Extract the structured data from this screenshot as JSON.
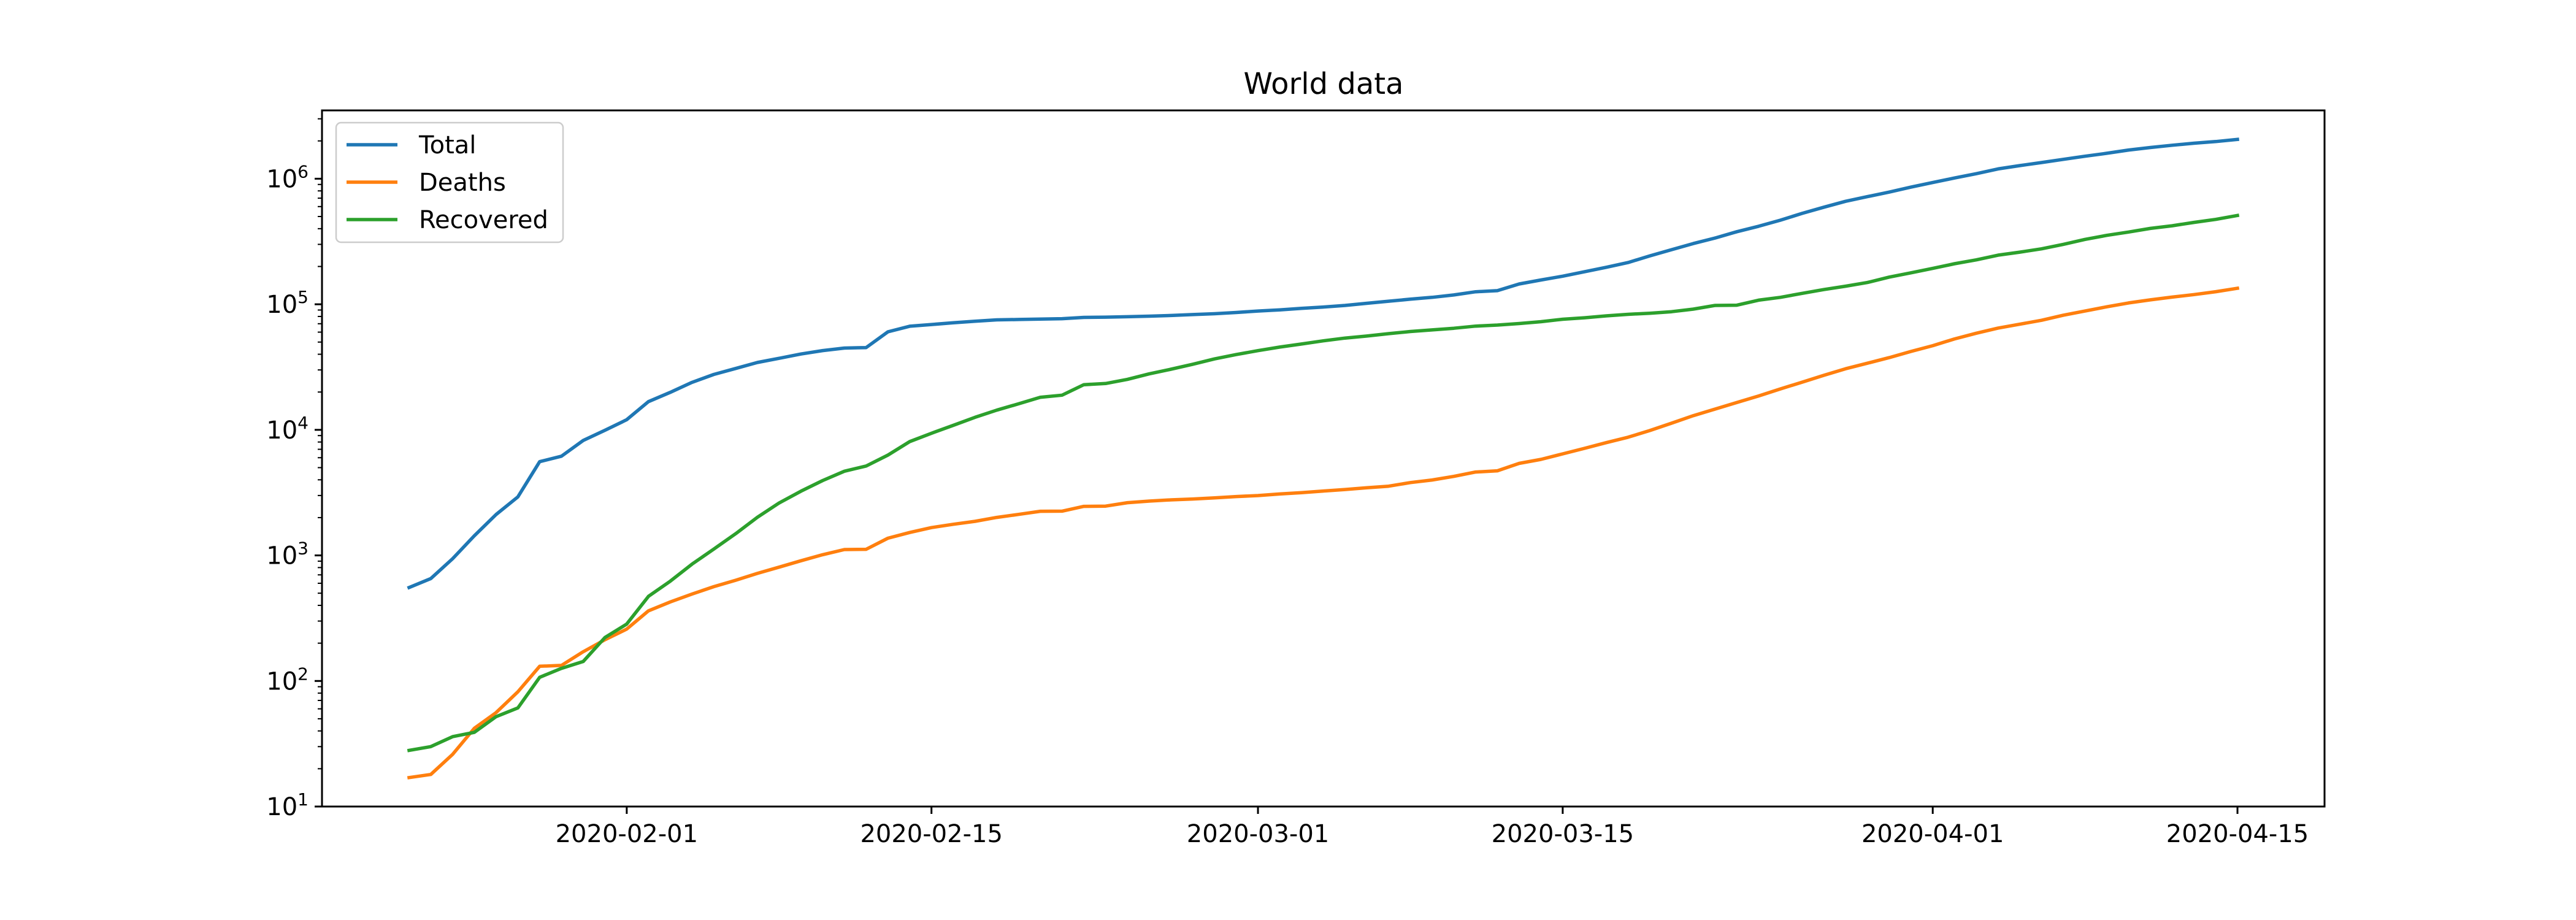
{
  "chart_data": {
    "type": "line",
    "title": "World data",
    "xlabel": "",
    "ylabel": "",
    "yscale": "log",
    "ylim": [
      10,
      3500000
    ],
    "xlim": [
      "2020-01-18",
      "2020-04-19"
    ],
    "grid": false,
    "legend_position": "upper-left",
    "x_ticks": [
      "2020-02-01",
      "2020-02-15",
      "2020-03-01",
      "2020-03-15",
      "2020-04-01",
      "2020-04-15"
    ],
    "y_ticks": [
      {
        "base": "10",
        "exp": "1",
        "value": 10
      },
      {
        "base": "10",
        "exp": "2",
        "value": 100
      },
      {
        "base": "10",
        "exp": "3",
        "value": 1000
      },
      {
        "base": "10",
        "exp": "4",
        "value": 10000
      },
      {
        "base": "10",
        "exp": "5",
        "value": 100000
      },
      {
        "base": "10",
        "exp": "6",
        "value": 1000000
      }
    ],
    "series": [
      {
        "name": "Total",
        "color": "#1f77b4",
        "points": [
          [
            "2020-01-22",
            555
          ],
          [
            "2020-01-23",
            654
          ],
          [
            "2020-01-24",
            941
          ],
          [
            "2020-01-25",
            1434
          ],
          [
            "2020-01-26",
            2118
          ],
          [
            "2020-01-27",
            2927
          ],
          [
            "2020-01-28",
            5578
          ],
          [
            "2020-01-29",
            6166
          ],
          [
            "2020-01-30",
            8234
          ],
          [
            "2020-01-31",
            9927
          ],
          [
            "2020-02-01",
            12038
          ],
          [
            "2020-02-02",
            16787
          ],
          [
            "2020-02-03",
            19881
          ],
          [
            "2020-02-04",
            23892
          ],
          [
            "2020-02-05",
            27635
          ],
          [
            "2020-02-06",
            30794
          ],
          [
            "2020-02-07",
            34391
          ],
          [
            "2020-02-08",
            37120
          ],
          [
            "2020-02-09",
            40150
          ],
          [
            "2020-02-10",
            42762
          ],
          [
            "2020-02-11",
            44802
          ],
          [
            "2020-02-12",
            45221
          ],
          [
            "2020-02-13",
            60368
          ],
          [
            "2020-02-14",
            66885
          ],
          [
            "2020-02-15",
            69030
          ],
          [
            "2020-02-16",
            71224
          ],
          [
            "2020-02-17",
            73258
          ],
          [
            "2020-02-18",
            75136
          ],
          [
            "2020-02-19",
            75639
          ],
          [
            "2020-02-20",
            76197
          ],
          [
            "2020-02-21",
            76819
          ],
          [
            "2020-02-22",
            78572
          ],
          [
            "2020-02-23",
            78958
          ],
          [
            "2020-02-24",
            79561
          ],
          [
            "2020-02-25",
            80406
          ],
          [
            "2020-02-26",
            81388
          ],
          [
            "2020-02-27",
            82746
          ],
          [
            "2020-02-28",
            84112
          ],
          [
            "2020-02-29",
            86011
          ],
          [
            "2020-03-01",
            88369
          ],
          [
            "2020-03-02",
            90306
          ],
          [
            "2020-03-03",
            92840
          ],
          [
            "2020-03-04",
            95120
          ],
          [
            "2020-03-05",
            97882
          ],
          [
            "2020-03-06",
            101784
          ],
          [
            "2020-03-07",
            105821
          ],
          [
            "2020-03-08",
            109795
          ],
          [
            "2020-03-09",
            113561
          ],
          [
            "2020-03-10",
            118592
          ],
          [
            "2020-03-11",
            125865
          ],
          [
            "2020-03-12",
            128343
          ],
          [
            "2020-03-13",
            145193
          ],
          [
            "2020-03-14",
            156094
          ],
          [
            "2020-03-15",
            167446
          ],
          [
            "2020-03-16",
            181527
          ],
          [
            "2020-03-17",
            197142
          ],
          [
            "2020-03-18",
            214910
          ],
          [
            "2020-03-19",
            242708
          ],
          [
            "2020-03-20",
            272166
          ],
          [
            "2020-03-21",
            304524
          ],
          [
            "2020-03-22",
            336953
          ],
          [
            "2020-03-23",
            378235
          ],
          [
            "2020-03-24",
            418045
          ],
          [
            "2020-03-25",
            467653
          ],
          [
            "2020-03-26",
            529591
          ],
          [
            "2020-03-27",
            593291
          ],
          [
            "2020-03-28",
            660693
          ],
          [
            "2020-03-29",
            720140
          ],
          [
            "2020-03-30",
            782389
          ],
          [
            "2020-03-31",
            857487
          ],
          [
            "2020-04-01",
            932605
          ],
          [
            "2020-04-02",
            1013466
          ],
          [
            "2020-04-03",
            1095917
          ],
          [
            "2020-04-04",
            1197405
          ],
          [
            "2020-04-05",
            1272115
          ],
          [
            "2020-04-06",
            1345101
          ],
          [
            "2020-04-07",
            1426096
          ],
          [
            "2020-04-08",
            1511104
          ],
          [
            "2020-04-09",
            1595350
          ],
          [
            "2020-04-10",
            1691719
          ],
          [
            "2020-04-11",
            1771514
          ],
          [
            "2020-04-12",
            1846680
          ],
          [
            "2020-04-13",
            1917320
          ],
          [
            "2020-04-14",
            1976191
          ],
          [
            "2020-04-15",
            2056054
          ]
        ]
      },
      {
        "name": "Deaths",
        "color": "#ff7f0e",
        "points": [
          [
            "2020-01-22",
            17
          ],
          [
            "2020-01-23",
            18
          ],
          [
            "2020-01-24",
            26
          ],
          [
            "2020-01-25",
            42
          ],
          [
            "2020-01-26",
            56
          ],
          [
            "2020-01-27",
            82
          ],
          [
            "2020-01-28",
            131
          ],
          [
            "2020-01-29",
            133
          ],
          [
            "2020-01-30",
            171
          ],
          [
            "2020-01-31",
            213
          ],
          [
            "2020-02-01",
            259
          ],
          [
            "2020-02-02",
            362
          ],
          [
            "2020-02-03",
            426
          ],
          [
            "2020-02-04",
            492
          ],
          [
            "2020-02-05",
            564
          ],
          [
            "2020-02-06",
            634
          ],
          [
            "2020-02-07",
            719
          ],
          [
            "2020-02-08",
            806
          ],
          [
            "2020-02-09",
            906
          ],
          [
            "2020-02-10",
            1013
          ],
          [
            "2020-02-11",
            1113
          ],
          [
            "2020-02-12",
            1118
          ],
          [
            "2020-02-13",
            1371
          ],
          [
            "2020-02-14",
            1523
          ],
          [
            "2020-02-15",
            1666
          ],
          [
            "2020-02-16",
            1770
          ],
          [
            "2020-02-17",
            1868
          ],
          [
            "2020-02-18",
            2007
          ],
          [
            "2020-02-19",
            2122
          ],
          [
            "2020-02-20",
            2247
          ],
          [
            "2020-02-21",
            2251
          ],
          [
            "2020-02-22",
            2458
          ],
          [
            "2020-02-23",
            2469
          ],
          [
            "2020-02-24",
            2629
          ],
          [
            "2020-02-25",
            2708
          ],
          [
            "2020-02-26",
            2770
          ],
          [
            "2020-02-27",
            2814
          ],
          [
            "2020-02-28",
            2872
          ],
          [
            "2020-02-29",
            2941
          ],
          [
            "2020-03-01",
            2996
          ],
          [
            "2020-03-02",
            3085
          ],
          [
            "2020-03-03",
            3160
          ],
          [
            "2020-03-04",
            3254
          ],
          [
            "2020-03-05",
            3348
          ],
          [
            "2020-03-06",
            3460
          ],
          [
            "2020-03-07",
            3558
          ],
          [
            "2020-03-08",
            3802
          ],
          [
            "2020-03-09",
            3988
          ],
          [
            "2020-03-10",
            4262
          ],
          [
            "2020-03-11",
            4615
          ],
          [
            "2020-03-12",
            4720
          ],
          [
            "2020-03-13",
            5404
          ],
          [
            "2020-03-14",
            5819
          ],
          [
            "2020-03-15",
            6440
          ],
          [
            "2020-03-16",
            7126
          ],
          [
            "2020-03-17",
            7905
          ],
          [
            "2020-03-18",
            8733
          ],
          [
            "2020-03-19",
            9867
          ],
          [
            "2020-03-20",
            11299
          ],
          [
            "2020-03-21",
            12973
          ],
          [
            "2020-03-22",
            14623
          ],
          [
            "2020-03-23",
            16497
          ],
          [
            "2020-03-24",
            18615
          ],
          [
            "2020-03-25",
            21181
          ],
          [
            "2020-03-26",
            23970
          ],
          [
            "2020-03-27",
            27198
          ],
          [
            "2020-03-28",
            30652
          ],
          [
            "2020-03-29",
            33925
          ],
          [
            "2020-03-30",
            37582
          ],
          [
            "2020-03-31",
            42107
          ],
          [
            "2020-04-01",
            46809
          ],
          [
            "2020-04-02",
            52983
          ],
          [
            "2020-04-03",
            58787
          ],
          [
            "2020-04-04",
            64606
          ],
          [
            "2020-04-05",
            69374
          ],
          [
            "2020-04-06",
            74565
          ],
          [
            "2020-04-07",
            81865
          ],
          [
            "2020-04-08",
            88338
          ],
          [
            "2020-04-09",
            95455
          ],
          [
            "2020-04-10",
            102525
          ],
          [
            "2020-04-11",
            108503
          ],
          [
            "2020-04-12",
            114090
          ],
          [
            "2020-04-13",
            119482
          ],
          [
            "2020-04-14",
            125984
          ],
          [
            "2020-04-15",
            134177
          ]
        ]
      },
      {
        "name": "Recovered",
        "color": "#2ca02c",
        "points": [
          [
            "2020-01-22",
            28
          ],
          [
            "2020-01-23",
            30
          ],
          [
            "2020-01-24",
            36
          ],
          [
            "2020-01-25",
            39
          ],
          [
            "2020-01-26",
            52
          ],
          [
            "2020-01-27",
            61
          ],
          [
            "2020-01-28",
            107
          ],
          [
            "2020-01-29",
            126
          ],
          [
            "2020-01-30",
            143
          ],
          [
            "2020-01-31",
            222
          ],
          [
            "2020-02-01",
            284
          ],
          [
            "2020-02-02",
            472
          ],
          [
            "2020-02-03",
            623
          ],
          [
            "2020-02-04",
            852
          ],
          [
            "2020-02-05",
            1124
          ],
          [
            "2020-02-06",
            1487
          ],
          [
            "2020-02-07",
            2011
          ],
          [
            "2020-02-08",
            2616
          ],
          [
            "2020-02-09",
            3244
          ],
          [
            "2020-02-10",
            3946
          ],
          [
            "2020-02-11",
            4683
          ],
          [
            "2020-02-12",
            5150
          ],
          [
            "2020-02-13",
            6295
          ],
          [
            "2020-02-14",
            8058
          ],
          [
            "2020-02-15",
            9395
          ],
          [
            "2020-02-16",
            10865
          ],
          [
            "2020-02-17",
            12583
          ],
          [
            "2020-02-18",
            14352
          ],
          [
            "2020-02-19",
            16121
          ],
          [
            "2020-02-20",
            18177
          ],
          [
            "2020-02-21",
            18890
          ],
          [
            "2020-02-22",
            22886
          ],
          [
            "2020-02-23",
            23394
          ],
          [
            "2020-02-24",
            25227
          ],
          [
            "2020-02-25",
            27905
          ],
          [
            "2020-02-26",
            30384
          ],
          [
            "2020-02-27",
            33277
          ],
          [
            "2020-02-28",
            36711
          ],
          [
            "2020-02-29",
            39782
          ],
          [
            "2020-03-01",
            42716
          ],
          [
            "2020-03-02",
            45602
          ],
          [
            "2020-03-03",
            48228
          ],
          [
            "2020-03-04",
            51170
          ],
          [
            "2020-03-05",
            53796
          ],
          [
            "2020-03-06",
            55865
          ],
          [
            "2020-03-07",
            58358
          ],
          [
            "2020-03-08",
            60694
          ],
          [
            "2020-03-09",
            62494
          ],
          [
            "2020-03-10",
            64404
          ],
          [
            "2020-03-11",
            67003
          ],
          [
            "2020-03-12",
            68324
          ],
          [
            "2020-03-13",
            70251
          ],
          [
            "2020-03-14",
            72624
          ],
          [
            "2020-03-15",
            76034
          ],
          [
            "2020-03-16",
            78088
          ],
          [
            "2020-03-17",
            80840
          ],
          [
            "2020-03-18",
            83207
          ],
          [
            "2020-03-19",
            84854
          ],
          [
            "2020-03-20",
            87256
          ],
          [
            "2020-03-21",
            91499
          ],
          [
            "2020-03-22",
            97885
          ],
          [
            "2020-03-23",
            98341
          ],
          [
            "2020-03-24",
            107890
          ],
          [
            "2020-03-25",
            113604
          ],
          [
            "2020-03-26",
            122203
          ],
          [
            "2020-03-27",
            130974
          ],
          [
            "2020-03-28",
            139415
          ],
          [
            "2020-03-29",
            149082
          ],
          [
            "2020-03-30",
            164566
          ],
          [
            "2020-03-31",
            178034
          ],
          [
            "2020-04-01",
            193177
          ],
          [
            "2020-04-02",
            210263
          ],
          [
            "2020-04-03",
            225796
          ],
          [
            "2020-04-04",
            246152
          ],
          [
            "2020-04-05",
            260012
          ],
          [
            "2020-04-06",
            276515
          ],
          [
            "2020-04-07",
            300054
          ],
          [
            "2020-04-08",
            328661
          ],
          [
            "2020-04-09",
            353975
          ],
          [
            "2020-04-10",
            376096
          ],
          [
            "2020-04-11",
            402110
          ],
          [
            "2020-04-12",
            421722
          ],
          [
            "2020-04-13",
            448655
          ],
          [
            "2020-04-14",
            474261
          ],
          [
            "2020-04-15",
            510000
          ]
        ]
      }
    ]
  }
}
